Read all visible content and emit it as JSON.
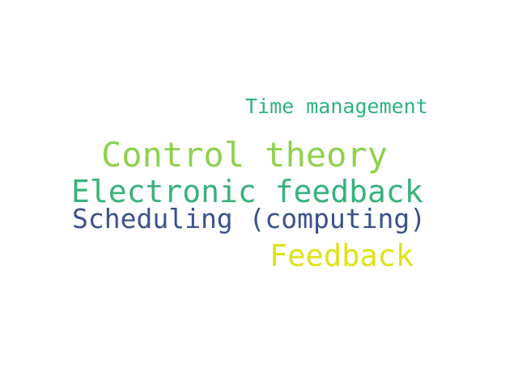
{
  "word_cloud": {
    "words": [
      {
        "text": "Time management",
        "color": "#2fb37c"
      },
      {
        "text": "Control theory",
        "color": "#8fd14f"
      },
      {
        "text": "Electronic feedback",
        "color": "#38b27a"
      },
      {
        "text": "Scheduling (computing)",
        "color": "#3b528b"
      },
      {
        "text": "Feedback",
        "color": "#dde318"
      }
    ]
  }
}
